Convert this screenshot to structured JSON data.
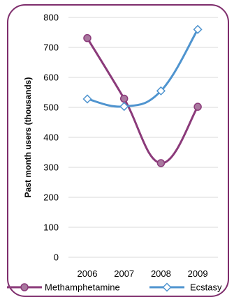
{
  "chart_data": {
    "type": "line",
    "x": [
      "2006",
      "2007",
      "2008",
      "2009"
    ],
    "ylabel": "Past month users (thousands)",
    "ylim": [
      0,
      800
    ],
    "yticks": [
      0,
      100,
      200,
      300,
      400,
      500,
      600,
      700,
      800
    ],
    "grid": true,
    "legend": "bottom",
    "series": [
      {
        "name": "Methamphetamine",
        "values": [
          731,
          529,
          314,
          502
        ],
        "color": "#8b3a7a",
        "marker": "circle"
      },
      {
        "name": "Ecstasy",
        "values": [
          528,
          503,
          555,
          760
        ],
        "color": "#4f94cf",
        "marker": "diamond"
      }
    ]
  }
}
